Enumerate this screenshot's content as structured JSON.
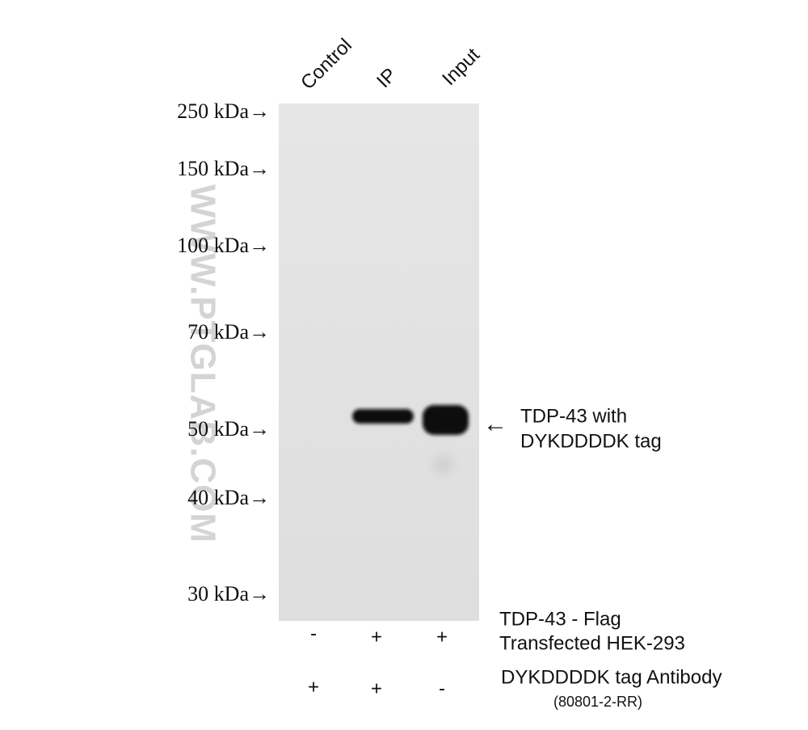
{
  "lanes": [
    "Control",
    "IP",
    "Input"
  ],
  "markers": [
    "250 kDa→",
    "150 kDa→",
    "100 kDa→",
    "70 kDa→",
    "50 kDa→",
    "40 kDa→",
    "30 kDa→"
  ],
  "watermark": "WWW.PTGLAB.COM",
  "band_label": {
    "arrow": "←",
    "lines": [
      "TDP-43 with",
      "DYKDDDDK tag"
    ]
  },
  "rows": [
    {
      "label": [
        "TDP-43 - Flag",
        "Transfected HEK-293"
      ],
      "signs": [
        "-",
        "+",
        "+"
      ]
    },
    {
      "label": [
        "DYKDDDDK tag Antibody",
        "(80801-2-RR)"
      ],
      "signs": [
        "+",
        "+",
        "-"
      ]
    }
  ]
}
